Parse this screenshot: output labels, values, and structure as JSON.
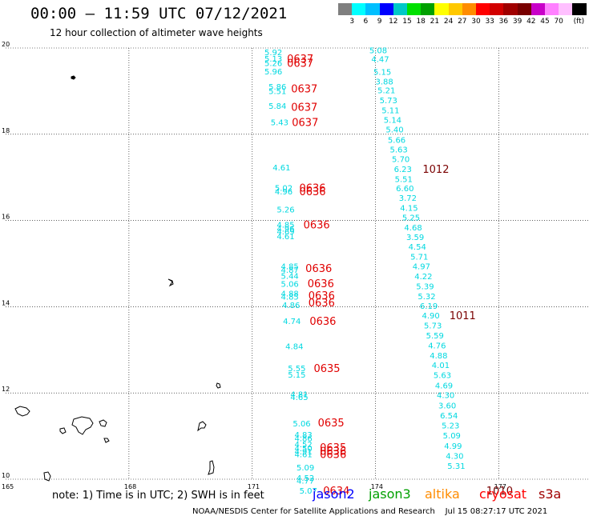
{
  "header": {
    "title": "00:00 – 11:59 UTC 07/12/2021",
    "subtitle": "12 hour collection of altimeter wave heights"
  },
  "color_scale": {
    "unit": "(ft)",
    "colors": [
      "#7f7f7f",
      "#00ffff",
      "#00bfff",
      "#0000ff",
      "#00c8c8",
      "#00e000",
      "#00a000",
      "#ffff00",
      "#ffc800",
      "#ff8c00",
      "#ff0000",
      "#d20000",
      "#a00000",
      "#780000",
      "#c800c8",
      "#ff80ff",
      "#ffc0ff",
      "#000000"
    ],
    "labels": [
      "3",
      "6",
      "9",
      "12",
      "15",
      "18",
      "21",
      "24",
      "27",
      "30",
      "33",
      "36",
      "39",
      "42",
      "45",
      "70"
    ]
  },
  "map": {
    "lat_labels": [
      "20",
      "18",
      "16",
      "14",
      "12",
      "10"
    ],
    "lon_labels": [
      "165",
      "168",
      "171",
      "174",
      "177"
    ]
  },
  "obs_jason3": [
    {
      "v": "5.92",
      "lat": 19.91,
      "lon": 171.55
    },
    {
      "v": "5.13",
      "lat": 19.76,
      "lon": 171.55
    },
    {
      "v": "5.26",
      "lat": 19.66,
      "lon": 171.55
    },
    {
      "v": "5.96",
      "lat": 19.46,
      "lon": 171.55
    },
    {
      "v": "5.86",
      "lat": 19.11,
      "lon": 171.65
    },
    {
      "v": "5.51",
      "lat": 19.01,
      "lon": 171.65
    },
    {
      "v": "5.84",
      "lat": 18.66,
      "lon": 171.65
    },
    {
      "v": "5.43",
      "lat": 18.28,
      "lon": 171.7
    },
    {
      "v": "4.61",
      "lat": 17.24,
      "lon": 171.75
    },
    {
      "v": "5.02",
      "lat": 16.76,
      "lon": 171.8
    },
    {
      "v": "4.96",
      "lat": 16.68,
      "lon": 171.8
    },
    {
      "v": "5.26",
      "lat": 16.26,
      "lon": 171.85
    },
    {
      "v": "4.85",
      "lat": 15.91,
      "lon": 171.85
    },
    {
      "v": "4.96",
      "lat": 15.82,
      "lon": 171.85
    },
    {
      "v": "4.69",
      "lat": 15.75,
      "lon": 171.85
    },
    {
      "v": "4.61",
      "lat": 15.64,
      "lon": 171.85
    },
    {
      "v": "4.85",
      "lat": 14.94,
      "lon": 171.95
    },
    {
      "v": "4.87",
      "lat": 14.86,
      "lon": 171.95
    },
    {
      "v": "5.44",
      "lat": 14.72,
      "lon": 171.95
    },
    {
      "v": "5.06",
      "lat": 14.54,
      "lon": 171.95
    },
    {
      "v": "4.88",
      "lat": 14.31,
      "lon": 171.95
    },
    {
      "v": "4.85",
      "lat": 14.24,
      "lon": 171.95
    },
    {
      "v": "4.86",
      "lat": 14.04,
      "lon": 171.98
    },
    {
      "v": "4.74",
      "lat": 13.67,
      "lon": 172.0
    },
    {
      "v": "4.84",
      "lat": 13.09,
      "lon": 172.06
    },
    {
      "v": "5.55",
      "lat": 12.58,
      "lon": 172.12
    },
    {
      "v": "5.15",
      "lat": 12.43,
      "lon": 172.12
    },
    {
      "v": "4.81",
      "lat": 11.98,
      "lon": 172.18
    },
    {
      "v": "4.65",
      "lat": 11.91,
      "lon": 172.18
    },
    {
      "v": "5.06",
      "lat": 11.3,
      "lon": 172.24
    },
    {
      "v": "4.83",
      "lat": 11.04,
      "lon": 172.28
    },
    {
      "v": "4.86",
      "lat": 10.96,
      "lon": 172.28
    },
    {
      "v": "4.52",
      "lat": 10.82,
      "lon": 172.28
    },
    {
      "v": "4.50",
      "lat": 10.72,
      "lon": 172.28
    },
    {
      "v": "4.91",
      "lat": 10.65,
      "lon": 172.28
    },
    {
      "v": "4.61",
      "lat": 10.58,
      "lon": 172.28
    },
    {
      "v": "5.09",
      "lat": 10.28,
      "lon": 172.33
    },
    {
      "v": "4.52",
      "lat": 10.04,
      "lon": 172.33
    },
    {
      "v": "4.77",
      "lat": 9.97,
      "lon": 172.33
    },
    {
      "v": "5.07",
      "lat": 9.74,
      "lon": 172.4
    },
    {
      "v": "5.08",
      "lat": 19.95,
      "lon": 174.1
    },
    {
      "v": "4.47",
      "lat": 19.75,
      "lon": 174.15
    },
    {
      "v": "5.15",
      "lat": 19.45,
      "lon": 174.2
    },
    {
      "v": "3.88",
      "lat": 19.23,
      "lon": 174.25
    },
    {
      "v": "5.21",
      "lat": 19.03,
      "lon": 174.3
    },
    {
      "v": "5.73",
      "lat": 18.79,
      "lon": 174.35
    },
    {
      "v": "5.11",
      "lat": 18.56,
      "lon": 174.4
    },
    {
      "v": "5.14",
      "lat": 18.34,
      "lon": 174.45
    },
    {
      "v": "5.40",
      "lat": 18.12,
      "lon": 174.5
    },
    {
      "v": "5.66",
      "lat": 17.88,
      "lon": 174.55
    },
    {
      "v": "5.63",
      "lat": 17.65,
      "lon": 174.6
    },
    {
      "v": "5.70",
      "lat": 17.43,
      "lon": 174.65
    },
    {
      "v": "6.23",
      "lat": 17.2,
      "lon": 174.7
    },
    {
      "v": "5.51",
      "lat": 16.97,
      "lon": 174.72
    },
    {
      "v": "6.60",
      "lat": 16.75,
      "lon": 174.75
    },
    {
      "v": "3.72",
      "lat": 16.53,
      "lon": 174.82
    },
    {
      "v": "4.15",
      "lat": 16.3,
      "lon": 174.85
    },
    {
      "v": "5.25",
      "lat": 16.08,
      "lon": 174.9
    },
    {
      "v": "4.68",
      "lat": 15.84,
      "lon": 174.95
    },
    {
      "v": "3.59",
      "lat": 15.62,
      "lon": 175.0
    },
    {
      "v": "4.54",
      "lat": 15.4,
      "lon": 175.05
    },
    {
      "v": "5.71",
      "lat": 15.17,
      "lon": 175.1
    },
    {
      "v": "4.97",
      "lat": 14.94,
      "lon": 175.15
    },
    {
      "v": "4.22",
      "lat": 14.71,
      "lon": 175.2
    },
    {
      "v": "5.39",
      "lat": 14.48,
      "lon": 175.24
    },
    {
      "v": "5.32",
      "lat": 14.25,
      "lon": 175.28
    },
    {
      "v": "6.19",
      "lat": 14.03,
      "lon": 175.33
    },
    {
      "v": "4.90",
      "lat": 13.8,
      "lon": 175.38
    },
    {
      "v": "5.73",
      "lat": 13.57,
      "lon": 175.43
    },
    {
      "v": "5.59",
      "lat": 13.34,
      "lon": 175.48
    },
    {
      "v": "4.76",
      "lat": 13.11,
      "lon": 175.53
    },
    {
      "v": "4.88",
      "lat": 12.88,
      "lon": 175.57
    },
    {
      "v": "4.01",
      "lat": 12.65,
      "lon": 175.62
    },
    {
      "v": "5.63",
      "lat": 12.42,
      "lon": 175.66
    },
    {
      "v": "4.69",
      "lat": 12.18,
      "lon": 175.7
    },
    {
      "v": "4.30",
      "lat": 11.96,
      "lon": 175.74
    },
    {
      "v": "3.60",
      "lat": 11.72,
      "lon": 175.78
    },
    {
      "v": "6.54",
      "lat": 11.48,
      "lon": 175.82
    },
    {
      "v": "5.23",
      "lat": 11.25,
      "lon": 175.86
    },
    {
      "v": "5.09",
      "lat": 11.02,
      "lon": 175.89
    },
    {
      "v": "4.99",
      "lat": 10.78,
      "lon": 175.92
    },
    {
      "v": "4.30",
      "lat": 10.55,
      "lon": 175.96
    },
    {
      "v": "5.31",
      "lat": 10.32,
      "lon": 176.0
    }
  ],
  "time_labels": [
    {
      "t": "0637",
      "lat": 19.76,
      "lon": 172.0
    },
    {
      "t": "0637",
      "lat": 19.66,
      "lon": 172.0
    },
    {
      "t": "0637",
      "lat": 19.06,
      "lon": 172.1
    },
    {
      "t": "0637",
      "lat": 18.64,
      "lon": 172.1
    },
    {
      "t": "0637",
      "lat": 18.28,
      "lon": 172.12
    },
    {
      "t": "0636",
      "lat": 16.76,
      "lon": 172.3
    },
    {
      "t": "0636",
      "lat": 16.68,
      "lon": 172.3
    },
    {
      "t": "0636",
      "lat": 15.91,
      "lon": 172.4
    },
    {
      "t": "0636",
      "lat": 14.9,
      "lon": 172.45
    },
    {
      "t": "0636",
      "lat": 14.55,
      "lon": 172.5
    },
    {
      "t": "0636",
      "lat": 14.27,
      "lon": 172.52
    },
    {
      "t": "0636",
      "lat": 14.1,
      "lon": 172.52
    },
    {
      "t": "0636",
      "lat": 13.67,
      "lon": 172.55
    },
    {
      "t": "0635",
      "lat": 12.58,
      "lon": 172.65
    },
    {
      "t": "0635",
      "lat": 11.32,
      "lon": 172.75
    },
    {
      "t": "0635",
      "lat": 10.74,
      "lon": 172.8
    },
    {
      "t": "0636",
      "lat": 10.66,
      "lon": 172.8
    },
    {
      "t": "0636",
      "lat": 10.58,
      "lon": 172.8
    },
    {
      "t": "0634",
      "lat": 9.74,
      "lon": 172.88
    }
  ],
  "time_labels_dark": [
    {
      "t": "1012",
      "lat": 17.2,
      "lon": 175.3
    },
    {
      "t": "1011",
      "lat": 13.8,
      "lon": 175.95
    },
    {
      "t": "1010",
      "lat": 9.74,
      "lon": 176.85
    }
  ],
  "footer": {
    "note": "note:  1) Time is in UTC;  2) SWH is in feet",
    "sat_jason2": "jason2",
    "sat_jason3": "jason3",
    "sat_altika": "altika",
    "sat_cryosat": "cryosat",
    "sat_s3a": "s3a",
    "sat_colors": {
      "jason2": "#0000ff",
      "jason3": "#00a000",
      "altika": "#ff8c00",
      "cryosat": "#ff0000",
      "s3a": "#a00000"
    },
    "credit": "NOAA/NESDIS Center for Satellite Applications and Research    Jul 15 08:27:17 UTC 2021"
  }
}
